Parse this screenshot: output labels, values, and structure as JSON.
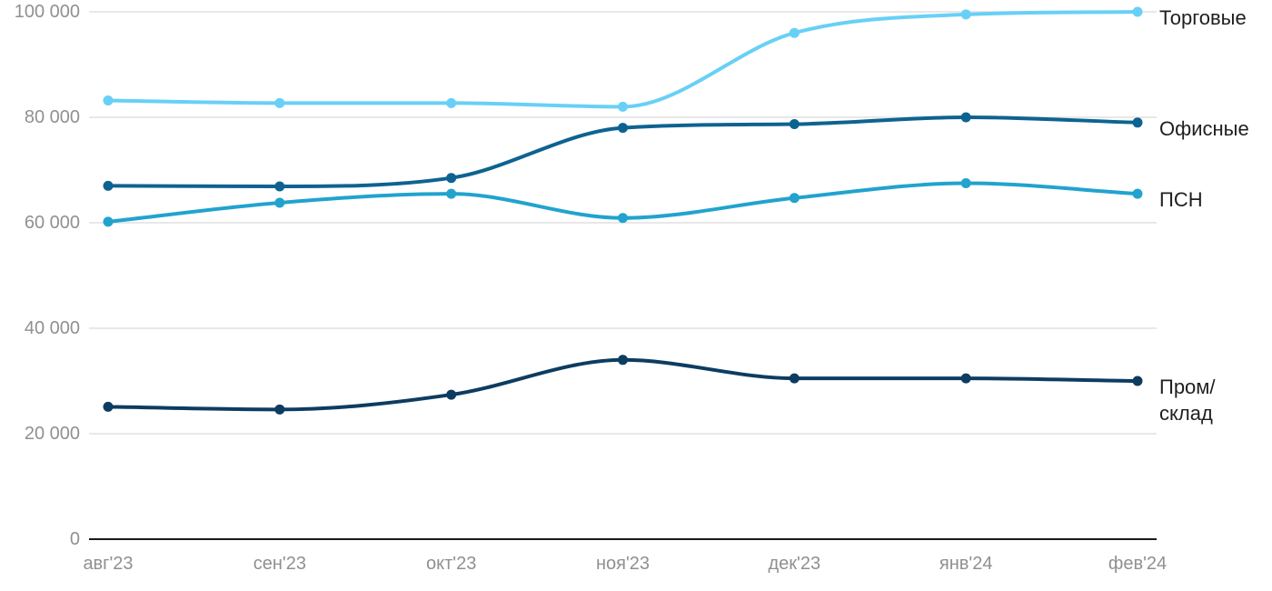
{
  "chart_data": {
    "type": "line",
    "title": "",
    "xlabel": "",
    "ylabel": "",
    "categories": [
      "авг'23",
      "сен'23",
      "окт'23",
      "ноя'23",
      "дек'23",
      "янв'24",
      "фев'24"
    ],
    "series": [
      {
        "name": "Торговые",
        "label_lines": [
          "Торговые"
        ],
        "color": "#68D0F6",
        "values": [
          83200,
          82700,
          82700,
          82000,
          96000,
          99500,
          100000
        ]
      },
      {
        "name": "Офисные",
        "label_lines": [
          "Офисные"
        ],
        "color": "#0D6390",
        "values": [
          67000,
          66900,
          68500,
          78000,
          78700,
          80000,
          79000
        ]
      },
      {
        "name": "ПСН",
        "label_lines": [
          "ПСН"
        ],
        "color": "#21A3CE",
        "values": [
          60200,
          63800,
          65500,
          60900,
          64700,
          67500,
          65500
        ]
      },
      {
        "name": "Пром/склад",
        "label_lines": [
          "Пром/",
          "склад"
        ],
        "color": "#0D3C61",
        "values": [
          25100,
          24600,
          27400,
          34000,
          30500,
          30500,
          30000
        ]
      }
    ],
    "yticks": [
      {
        "value": 0,
        "label": "0"
      },
      {
        "value": 20000,
        "label": "20 000"
      },
      {
        "value": 40000,
        "label": "40 000"
      },
      {
        "value": 60000,
        "label": "60 000"
      },
      {
        "value": 80000,
        "label": "80 000"
      },
      {
        "value": 100000,
        "label": "100 000"
      }
    ],
    "ylim": [
      0,
      100000
    ],
    "grid": true,
    "legend_position": "right-of-line-end",
    "colors": {
      "background": "#ffffff",
      "grid": "#e8e8e8",
      "axis_line": "#1a1a1a",
      "tick_text": "#909090",
      "label_text": "#1f1f1f"
    }
  }
}
